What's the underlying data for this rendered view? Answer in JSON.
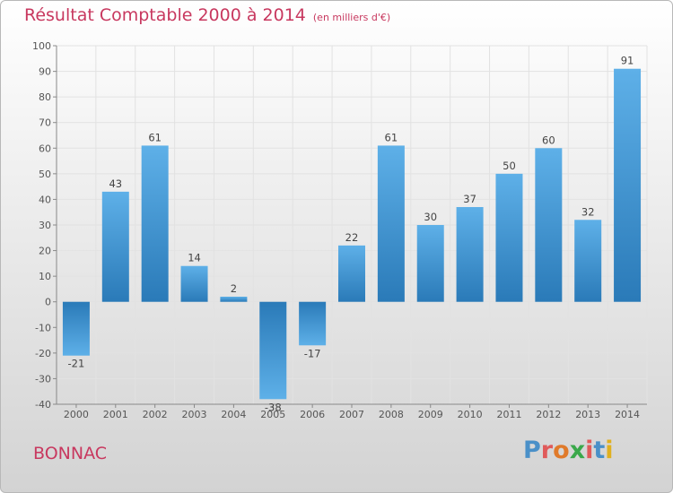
{
  "header": {
    "title": "Résultat Comptable 2000 à 2014",
    "subtitle": "(en milliers d'€)"
  },
  "footer": {
    "town": "BONNAC",
    "logo_text": "Proxiti"
  },
  "colors": {
    "title": "#c8385f",
    "bar_light": "#5eb0e8",
    "bar_dark": "#2a7ab8",
    "logo_letters": [
      "#4a90c8",
      "#e05a5a",
      "#e07a2a",
      "#3aa84a",
      "#e05a5a",
      "#4a90c8",
      "#e0b020"
    ]
  },
  "chart_data": {
    "type": "bar",
    "title": "Résultat Comptable 2000 à 2014",
    "ylabel": "en milliers d'€",
    "xlabel": "",
    "ylim": [
      -40,
      100
    ],
    "yticks": [
      100,
      90,
      80,
      70,
      60,
      50,
      40,
      30,
      20,
      10,
      0,
      -10,
      -20,
      -30,
      -40
    ],
    "grid": true,
    "categories": [
      "2000",
      "2001",
      "2002",
      "2003",
      "2004",
      "2005",
      "2006",
      "2007",
      "2008",
      "2009",
      "2010",
      "2011",
      "2012",
      "2013",
      "2014"
    ],
    "values": [
      -21,
      43,
      61,
      14,
      2,
      -38,
      -17,
      22,
      61,
      30,
      37,
      50,
      60,
      32,
      91
    ]
  }
}
